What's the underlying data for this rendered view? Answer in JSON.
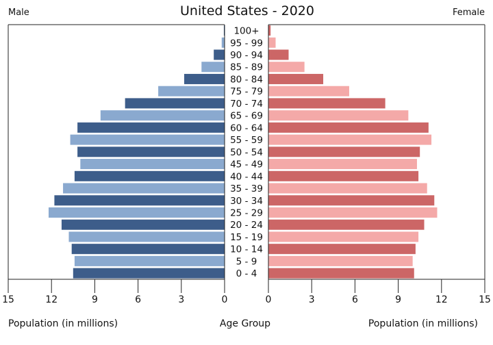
{
  "chart_data": {
    "type": "bar",
    "title": "United States - 2020",
    "left_label": "Male",
    "right_label": "Female",
    "xlabel_left": "Population (in millions)",
    "xlabel_center": "Age Group",
    "xlabel_right": "Population (in millions)",
    "xlim": [
      0,
      15
    ],
    "ticks_left": [
      "15",
      "12",
      "9",
      "6",
      "3",
      "0"
    ],
    "ticks_right": [
      "0",
      "3",
      "6",
      "9",
      "12",
      "15"
    ],
    "tick_values": [
      15,
      12,
      9,
      6,
      3,
      0
    ],
    "categories": [
      "0 - 4",
      "5 - 9",
      "10 - 14",
      "15 - 19",
      "20 - 24",
      "25 - 29",
      "30 - 34",
      "35 - 39",
      "40 - 44",
      "45 - 49",
      "50 - 54",
      "55 - 59",
      "60 - 64",
      "65 - 69",
      "70 - 74",
      "75 - 79",
      "80 - 84",
      "85 - 89",
      "90 - 94",
      "95 - 99",
      "100+"
    ],
    "series": [
      {
        "name": "Male",
        "values": [
          10.5,
          10.4,
          10.6,
          10.8,
          11.3,
          12.2,
          11.8,
          11.2,
          10.4,
          10.0,
          10.2,
          10.7,
          10.2,
          8.6,
          6.9,
          4.6,
          2.8,
          1.6,
          0.75,
          0.2,
          0.05
        ],
        "colors": [
          "#3d5d8a",
          "#8aa9cf"
        ]
      },
      {
        "name": "Female",
        "values": [
          10.1,
          10.0,
          10.2,
          10.4,
          10.8,
          11.7,
          11.5,
          11.0,
          10.4,
          10.3,
          10.5,
          11.3,
          11.1,
          9.7,
          8.1,
          5.6,
          3.8,
          2.5,
          1.4,
          0.5,
          0.15
        ],
        "colors": [
          "#cc6666",
          "#f4a9a8"
        ]
      }
    ],
    "grid": false,
    "legend": "none"
  }
}
